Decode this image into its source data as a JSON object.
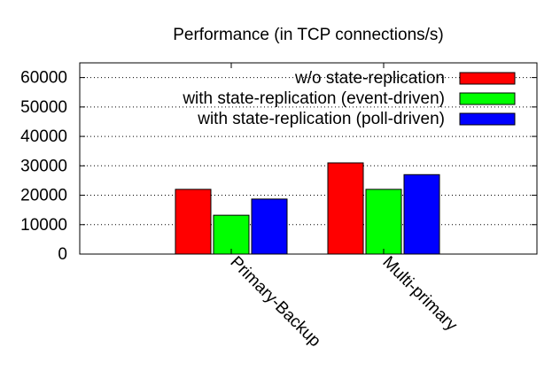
{
  "chart_data": {
    "type": "bar",
    "title": "Performance (in TCP connections/s)",
    "xlabel": "",
    "ylabel": "",
    "ylim": [
      0,
      65000
    ],
    "yticks": [
      0,
      10000,
      20000,
      30000,
      40000,
      50000,
      60000
    ],
    "ytick_labels": [
      "0",
      "10000",
      "20000",
      "30000",
      "40000",
      "50000",
      "60000"
    ],
    "grid": "horizontal dotted",
    "legend_position": "top-right",
    "categories": [
      "Primary-Backup",
      "Multi-primary"
    ],
    "series": [
      {
        "name": "w/o state-replication",
        "color": "#ff0000",
        "values": [
          22000,
          31000
        ]
      },
      {
        "name": "with state-replication (event-driven)",
        "color": "#00ff00",
        "values": [
          13200,
          22000
        ]
      },
      {
        "name": "with state-replication (poll-driven)",
        "color": "#0000ff",
        "values": [
          18700,
          27000
        ]
      }
    ]
  }
}
